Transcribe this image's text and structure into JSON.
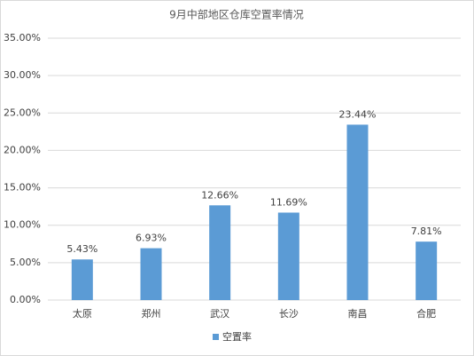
{
  "chart_data": {
    "type": "bar",
    "title": "9月中部地区仓库空置率情况",
    "categories": [
      "太原",
      "郑州",
      "武汉",
      "长沙",
      "南昌",
      "合肥"
    ],
    "series": [
      {
        "name": "空置率",
        "color": "#5b9bd5",
        "values": [
          5.43,
          6.93,
          12.66,
          11.69,
          23.44,
          7.81
        ],
        "value_labels": [
          "5.43%",
          "6.93%",
          "12.66%",
          "11.69%",
          "23.44%",
          "7.81%"
        ]
      }
    ],
    "ylim": [
      0,
      35
    ],
    "yticks": [
      {
        "value": 0,
        "label": "0.00%"
      },
      {
        "value": 5,
        "label": "5.00%"
      },
      {
        "value": 10,
        "label": "10.00%"
      },
      {
        "value": 15,
        "label": "15.00%"
      },
      {
        "value": 20,
        "label": "20.00%"
      },
      {
        "value": 25,
        "label": "25.00%"
      },
      {
        "value": 30,
        "label": "30.00%"
      },
      {
        "value": 35,
        "label": "35.00%"
      }
    ],
    "grid": true,
    "legend": "bottom"
  }
}
